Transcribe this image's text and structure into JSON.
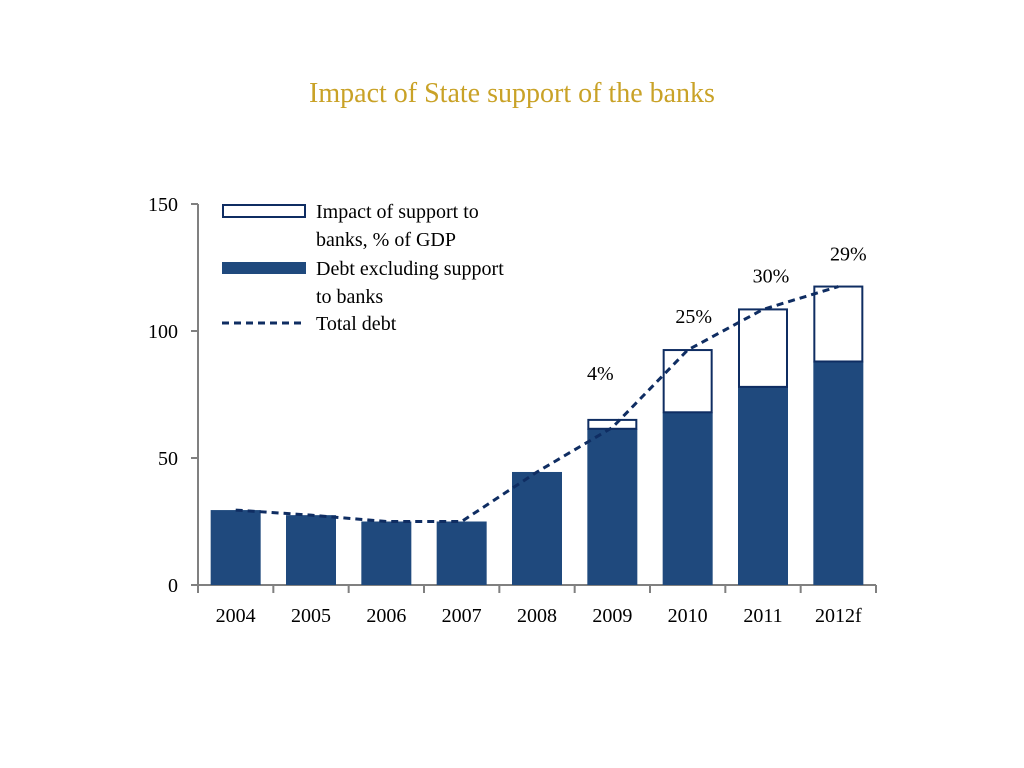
{
  "colors": {
    "title": "#c9a227",
    "bar_fill": "#1f497d",
    "outline": "#0f2d62",
    "line": "#0f2d62",
    "axis": "#808080"
  },
  "chart_data": {
    "type": "bar",
    "title": "Impact of State support of the banks",
    "xlabel": "",
    "ylabel": "",
    "ylim": [
      0,
      150
    ],
    "yticks": [
      "0",
      "50",
      "100",
      "150"
    ],
    "ytick_values": [
      0,
      50,
      100,
      150
    ],
    "categories": [
      "2004",
      "2005",
      "2006",
      "2007",
      "2008",
      "2009",
      "2010",
      "2011",
      "2012f"
    ],
    "series": [
      {
        "name": "Debt excluding support to banks",
        "kind": "bar",
        "values": [
          29.5,
          27.5,
          25,
          25,
          44.5,
          61.5,
          68,
          78,
          88
        ]
      },
      {
        "name": "Impact of support to banks, % of GDP",
        "kind": "stacked-outline-bar",
        "values": [
          0,
          0,
          0,
          0,
          0,
          3.5,
          24.5,
          30.5,
          29.5
        ]
      },
      {
        "name": "Total debt",
        "kind": "dashed-line",
        "values": [
          29.5,
          27.5,
          25,
          25,
          44.5,
          62,
          92.5,
          108.5,
          117.5
        ]
      }
    ],
    "data_labels": [
      {
        "category": "2009",
        "text": "4%"
      },
      {
        "category": "2010",
        "text": "25%"
      },
      {
        "category": "2011",
        "text": "30%"
      },
      {
        "category": "2012f",
        "text": "29%"
      }
    ],
    "legend": {
      "placement": "top-left",
      "items": [
        {
          "lines": [
            "Impact of support to",
            "banks, % of GDP"
          ],
          "swatch": "outline-bar"
        },
        {
          "lines": [
            "Debt excluding support",
            "to banks"
          ],
          "swatch": "filled-bar"
        },
        {
          "lines": [
            "Total debt"
          ],
          "swatch": "dashed-line"
        }
      ]
    },
    "grid": false
  }
}
